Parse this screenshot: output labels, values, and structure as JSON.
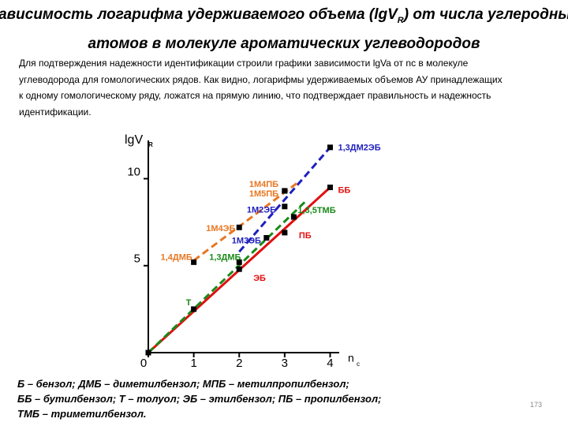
{
  "chart_data": {
    "type": "scatter",
    "title": [
      "Зависимость логарифма удерживаемого объема (lgV",
      "R",
      ") от числа углеродных"
    ],
    "title_line2": "атомов в молекуле ароматических углеводородов",
    "y_label": "lgV",
    "y_label_sub": "R",
    "x_label": "n",
    "x_label_sub": "c",
    "xlim": [
      0,
      4.2
    ],
    "ylim": [
      0,
      12.2
    ],
    "xticks": [
      0,
      1,
      2,
      3,
      4
    ],
    "yticks": [
      5,
      10
    ],
    "points": {
      "labels": [
        null,
        "Т",
        "ЭБ",
        "ПБ",
        "ББ",
        "1,4ДМБ",
        "1,3ДМБ",
        "1М4ЭБ",
        "1М3ЭБ",
        "1М2ЭБ",
        "1,3,5ТМБ",
        "1М4ПБ",
        "1М5ПБ",
        "1,3ДМ2ЭБ"
      ],
      "x": [
        0,
        1,
        2,
        3,
        4,
        1,
        2,
        2,
        2.6,
        3,
        3.2,
        3,
        3,
        4
      ],
      "values": [
        0,
        2.5,
        4.8,
        6.9,
        9.5,
        5.2,
        5.2,
        7.2,
        6.6,
        8.4,
        7.8,
        9.3,
        9.3,
        11.8
      ],
      "colors": [
        "#000000",
        "#1a8a1a",
        "#e01010",
        "#e01010",
        "#e01010",
        "#e87722",
        "#1a8a1a",
        "#e87722",
        "#1f1fbf",
        "#1f1fbf",
        "#1a8a1a",
        "#e87722",
        "#e87722",
        "#1f1fbf"
      ]
    },
    "lines": [
      {
        "color": "#e01010",
        "dashed": false,
        "x": [
          0,
          4
        ],
        "values": [
          0,
          9.5
        ]
      },
      {
        "color": "#1a8a1a",
        "dashed": true,
        "x": [
          0,
          3.5
        ],
        "values": [
          0,
          8.8
        ]
      },
      {
        "color": "#1f1fbf",
        "dashed": true,
        "x": [
          2,
          4
        ],
        "values": [
          5.8,
          11.8
        ]
      },
      {
        "color": "#e87722",
        "dashed": true,
        "x": [
          1,
          3.3
        ],
        "values": [
          5.3,
          9.8
        ]
      }
    ]
  },
  "text": "Для подтверждения надежности идентификации строили графики зависимости lgVa от nc в молекуле углеводорода для гомологических рядов. Как видно, логарифмы удерживаемых объемов АУ принадлежащих к одному гомологическому ряду, ложатся на прямую линию, что подтверждает правильность и надежность идентификации.",
  "footnote": [
    "Б – бензол; ДМБ – диметилбензол; МПБ – метилпропилбензол;",
    "ББ – бутилбензол; Т – толуол; ЭБ – этилбензол; ПБ – пропилбензол;",
    "ТМБ – триметилбензол."
  ],
  "page_number": 173
}
